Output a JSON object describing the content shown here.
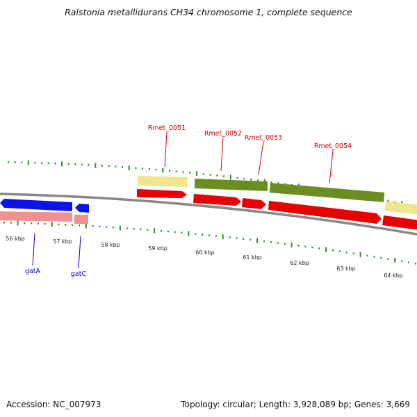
{
  "title": "Ralstonia metallidurans CH34 chromosome 1, complete sequence",
  "footer": {
    "accession": "Accession: NC_007973",
    "summary": "Topology: circular; Length: 3,928,089 bp; Genes: 3,669"
  },
  "colors": {
    "tick": "#2e8b2e",
    "backbone": "#888888",
    "upper_gene_label": "#cc0000",
    "lower_gene_label": "#0000cc",
    "cds_red": "#e60000",
    "gene_blue": "#0a14e6",
    "pale_red": "#f09090",
    "olive": "#6b8e23",
    "khaki": "#f0e68c"
  },
  "scale_labels": [
    "56 kbp",
    "57 kbp",
    "58 kbp",
    "59 kbp",
    "60 kbp",
    "61 kbp",
    "62 kbp",
    "63 kbp",
    "64 kbp"
  ],
  "upper_genes": [
    "Rmet_0051",
    "Rmet_0052",
    "Rmet_0053",
    "Rmet_0054"
  ],
  "lower_genes": [
    "gatA",
    "gatC"
  ]
}
